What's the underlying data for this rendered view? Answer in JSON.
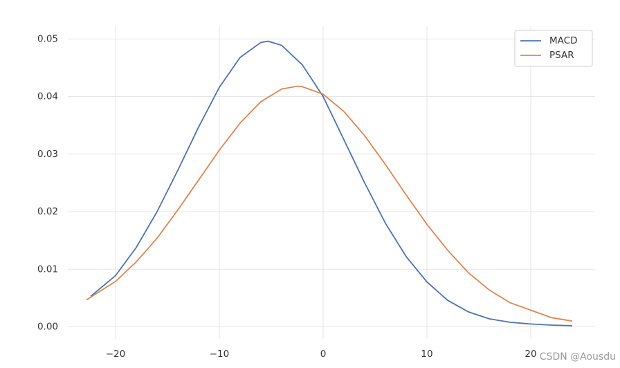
{
  "chart_data": {
    "type": "line",
    "series": [
      {
        "name": "MACD",
        "color": "#4c72b0",
        "x": [
          -22.4,
          -20,
          -18,
          -16,
          -14,
          -12,
          -10,
          -8,
          -6,
          -5.3,
          -4,
          -2,
          0,
          2,
          4,
          6,
          8,
          10,
          12,
          14,
          16,
          18,
          20,
          22,
          24
        ],
        "values": [
          0.0053,
          0.0089,
          0.0138,
          0.02,
          0.0272,
          0.0347,
          0.0416,
          0.0468,
          0.0494,
          0.0496,
          0.0489,
          0.0455,
          0.04,
          0.0325,
          0.025,
          0.018,
          0.0122,
          0.0078,
          0.0046,
          0.0026,
          0.0014,
          0.0008,
          0.0005,
          0.0003,
          0.0002
        ]
      },
      {
        "name": "PSAR",
        "color": "#dd8452",
        "x": [
          -22.8,
          -20,
          -18,
          -16,
          -14,
          -12,
          -10,
          -8,
          -6,
          -4,
          -2.5,
          -2,
          0,
          2,
          4,
          6,
          8,
          10,
          12,
          14,
          16,
          18,
          20,
          22,
          24
        ],
        "values": [
          0.0047,
          0.0079,
          0.0113,
          0.0154,
          0.0203,
          0.0255,
          0.0307,
          0.0354,
          0.0391,
          0.0413,
          0.0418,
          0.0417,
          0.0404,
          0.0374,
          0.0332,
          0.0282,
          0.0229,
          0.0178,
          0.0133,
          0.0094,
          0.0064,
          0.0042,
          0.0029,
          0.0016,
          0.001
        ]
      }
    ],
    "xlim": [
      -24.6,
      26.2
    ],
    "ylim": [
      -0.0021,
      0.0522
    ],
    "xticks": [
      {
        "value": -20,
        "label": "−20"
      },
      {
        "value": -10,
        "label": "−10"
      },
      0,
      10,
      20
    ],
    "yticks": [
      {
        "value": 0,
        "label": "0.00"
      },
      0.01,
      0.02,
      0.03,
      0.04,
      0.05
    ],
    "grid": true,
    "legend": "upper right",
    "watermark": "CSDN @Aousdu"
  }
}
